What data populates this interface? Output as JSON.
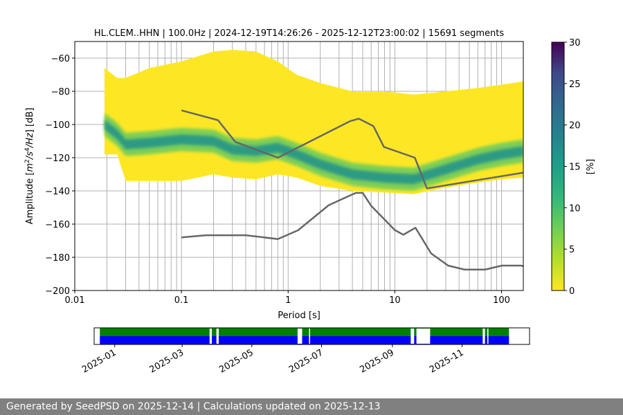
{
  "chart_data": {
    "type": "heatmap",
    "title": "HL.CLEM..HHN | 100.0Hz | 2024-12-19T14:26:26 - 2025-12-12T23:00:02 | 15691 segments",
    "xlabel": "Period [s]",
    "ylabel_main": "Amplitude [",
    "ylabel_unit_m": "m",
    "ylabel_unit_exp2": "2",
    "ylabel_unit_s": "/s",
    "ylabel_unit_exp4": "4",
    "ylabel_unit_hz": "/Hz",
    "ylabel_tail": "] [dB]",
    "x_scale": "log",
    "xlim": [
      0.01,
      160
    ],
    "ylim": [
      -200,
      -50
    ],
    "x_ticks": [
      0.01,
      0.1,
      1,
      10,
      100
    ],
    "x_tick_labels": [
      "0.01",
      "0.1",
      "1",
      "10",
      "100"
    ],
    "y_ticks": [
      -200,
      -180,
      -160,
      -140,
      -120,
      -100,
      -80,
      -60
    ],
    "y_tick_labels": [
      "−200",
      "−180",
      "−160",
      "−140",
      "−120",
      "−100",
      "−80",
      "−60"
    ],
    "grid": true,
    "colorbar": {
      "label": "[%]",
      "range": [
        0,
        30
      ],
      "ticks": [
        0,
        5,
        10,
        15,
        20,
        25,
        30
      ],
      "tick_labels": [
        "0",
        "5",
        "10",
        "15",
        "20",
        "25",
        "30"
      ],
      "colormap": "viridis_r"
    },
    "heatmap_envelope": [
      {
        "period": 0.019,
        "lower": -118,
        "mode": -100,
        "upper": -66
      },
      {
        "period": 0.025,
        "lower": -118,
        "mode": -106,
        "upper": -72
      },
      {
        "period": 0.03,
        "lower": -134,
        "mode": -112,
        "upper": -72
      },
      {
        "period": 0.05,
        "lower": -134,
        "mode": -111,
        "upper": -66
      },
      {
        "period": 0.1,
        "lower": -134,
        "mode": -109,
        "upper": -62
      },
      {
        "period": 0.2,
        "lower": -130,
        "mode": -110,
        "upper": -56
      },
      {
        "period": 0.3,
        "lower": -132,
        "mode": -115,
        "upper": -55
      },
      {
        "period": 0.5,
        "lower": -133,
        "mode": -116,
        "upper": -56
      },
      {
        "period": 0.8,
        "lower": -130,
        "mode": -114,
        "upper": -62
      },
      {
        "period": 1.2,
        "lower": -132,
        "mode": -118,
        "upper": -70
      },
      {
        "period": 2,
        "lower": -137,
        "mode": -124,
        "upper": -75
      },
      {
        "period": 4,
        "lower": -140,
        "mode": -130,
        "upper": -80
      },
      {
        "period": 8,
        "lower": -141,
        "mode": -132,
        "upper": -80
      },
      {
        "period": 15,
        "lower": -142,
        "mode": -133,
        "upper": -82
      },
      {
        "period": 30,
        "lower": -138,
        "mode": -127,
        "upper": -80
      },
      {
        "period": 60,
        "lower": -135,
        "mode": -121,
        "upper": -78
      },
      {
        "period": 100,
        "lower": -133,
        "mode": -118,
        "upper": -76
      },
      {
        "period": 160,
        "lower": -132,
        "mode": -116,
        "upper": -74
      }
    ],
    "series": [
      {
        "x": [
          0.1,
          0.22,
          0.32,
          0.8,
          3.8,
          4.6,
          6.3,
          7.9,
          15.4,
          20,
          160
        ],
        "y": [
          -91.5,
          -97.4,
          -110.5,
          -120,
          -98,
          -96.5,
          -101,
          -113.5,
          -120,
          -138.5,
          -129
        ]
      },
      {
        "x": [
          0.1,
          0.17,
          0.4,
          0.8,
          1.24,
          2.4,
          4.3,
          5.0,
          6.0,
          10,
          12,
          15.6,
          21.9,
          31.6,
          45,
          70,
          101,
          154,
          160
        ],
        "y": [
          -168,
          -166.7,
          -166.7,
          -169,
          -163.7,
          -148.6,
          -141.2,
          -141.2,
          -149,
          -163.6,
          -166.4,
          -162.2,
          -177.7,
          -185,
          -187.4,
          -187.4,
          -185,
          -185,
          -185.5
        ]
      }
    ],
    "series_color": "#666666",
    "heatmap_colors": {
      "sparse": "#fde725",
      "medium": "#5ec962",
      "dense": "#21918c"
    }
  },
  "timeline": {
    "x_start": "2024-12-14",
    "x_end": "2025-12-30",
    "data_start": "2024-12-19",
    "data_end": "2025-12-12",
    "ticks": [
      "2025-01-01",
      "2025-03-01",
      "2025-05-01",
      "2025-07-01",
      "2025-09-01",
      "2025-11-01"
    ],
    "tick_labels": [
      "2025-01",
      "2025-03",
      "2025-05",
      "2025-07",
      "2025-09",
      "2025-11"
    ],
    "gaps": [
      {
        "start": "2025-03-25",
        "end": "2025-03-27"
      },
      {
        "start": "2025-03-31",
        "end": "2025-04-02"
      },
      {
        "start": "2025-06-10",
        "end": "2025-06-14"
      },
      {
        "start": "2025-06-20",
        "end": "2025-06-21"
      },
      {
        "start": "2025-09-17",
        "end": "2025-09-20"
      },
      {
        "start": "2025-09-22",
        "end": "2025-10-04"
      },
      {
        "start": "2025-11-19",
        "end": "2025-11-21"
      },
      {
        "start": "2025-11-23",
        "end": "2025-11-24"
      }
    ],
    "colors": {
      "top": "#008000",
      "bottom": "#0000ff"
    }
  },
  "footer": {
    "text": "Generated by SeedPSD on 2025-12-14 | Calculations updated on 2025-12-13"
  }
}
